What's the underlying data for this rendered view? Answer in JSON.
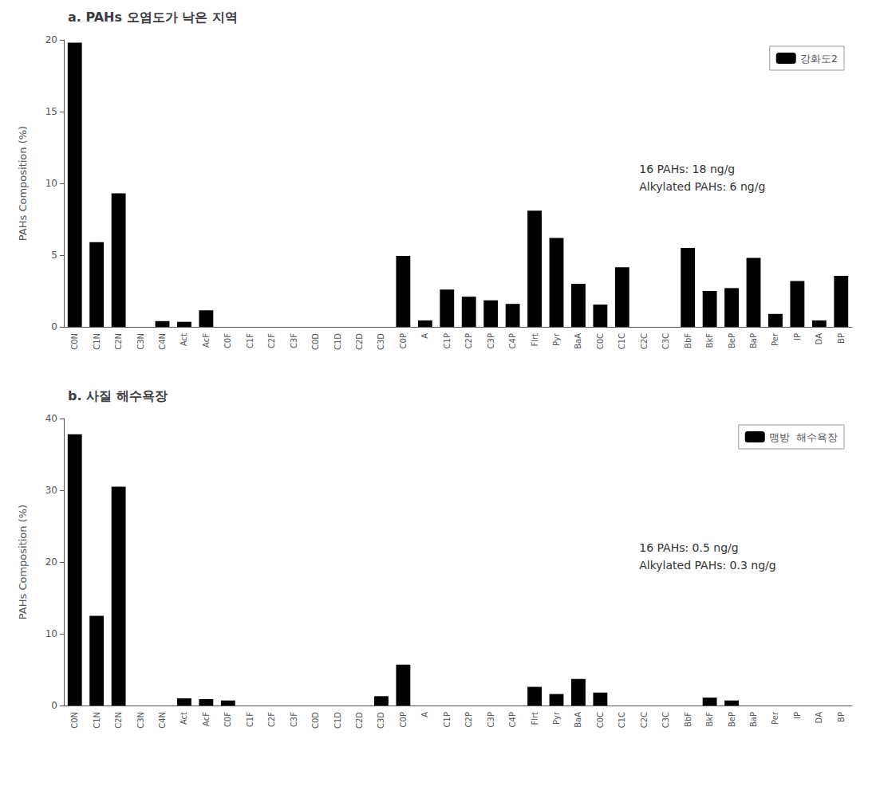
{
  "chart_data": [
    {
      "type": "bar",
      "title": "a. PAHs 오염도가 낙은 지역",
      "ylabel": "PAHs Composition (%)",
      "categories": [
        "C0N",
        "C1N",
        "C2N",
        "C3N",
        "C4N",
        "Act",
        "AcF",
        "C0F",
        "C1F",
        "C2F",
        "C3F",
        "C0D",
        "C1D",
        "C2D",
        "C3D",
        "C0P",
        "A",
        "C1P",
        "C2P",
        "C3P",
        "C4P",
        "Flrt",
        "Pyr",
        "BaA",
        "C0C",
        "C1C",
        "C2C",
        "C3C",
        "BbF",
        "BkF",
        "BeP",
        "BaP",
        "Per",
        "IP",
        "DA",
        "BP"
      ],
      "series": [
        {
          "name": "강화도2",
          "color": "#000000",
          "values": [
            19.8,
            5.9,
            9.3,
            0.0,
            0.4,
            0.35,
            1.15,
            0.0,
            0.0,
            0.0,
            0.0,
            0.0,
            0.0,
            0.0,
            0.0,
            4.95,
            0.45,
            2.6,
            2.1,
            1.85,
            1.6,
            8.1,
            6.2,
            3.0,
            1.55,
            4.15,
            0.0,
            0.0,
            5.5,
            2.5,
            2.7,
            4.8,
            0.9,
            3.2,
            0.45,
            3.55
          ]
        }
      ],
      "annotations": [
        "16 PAHs: 18 ng/g\nAlkylated PAHs: 6 ng/g"
      ],
      "ylim": [
        0,
        20
      ],
      "yticks": [
        0,
        5,
        10,
        15,
        20
      ],
      "grid": false,
      "legend": "upper right"
    },
    {
      "type": "bar",
      "title": "b. 사질 해수욕장",
      "ylabel": "PAHs Composition (%)",
      "categories": [
        "C0N",
        "C1N",
        "C2N",
        "C3N",
        "C4N",
        "Act",
        "AcF",
        "C0F",
        "C1F",
        "C2F",
        "C3F",
        "C0D",
        "C1D",
        "C2D",
        "C3D",
        "C0P",
        "A",
        "C1P",
        "C2P",
        "C3P",
        "C4P",
        "Flrt",
        "Pyr",
        "BaA",
        "C0C",
        "C1C",
        "C2C",
        "C3C",
        "BbF",
        "BkF",
        "BeP",
        "BaP",
        "Per",
        "IP",
        "DA",
        "BP"
      ],
      "series": [
        {
          "name": "맹방  해수욕장",
          "color": "#000000",
          "values": [
            37.8,
            12.5,
            30.5,
            0.0,
            0.0,
            1.0,
            0.9,
            0.7,
            0.0,
            0.0,
            0.0,
            0.0,
            0.0,
            0.0,
            1.3,
            5.7,
            0.0,
            0.0,
            0.0,
            0.0,
            0.0,
            2.6,
            1.6,
            3.7,
            1.8,
            0.0,
            0.0,
            0.0,
            0.0,
            1.1,
            0.7,
            0.0,
            0.0,
            0.0,
            0.0,
            0.0
          ]
        }
      ],
      "annotations": [
        "16 PAHs: 0.5 ng/g\nAlkylated PAHs: 0.3 ng/g"
      ],
      "ylim": [
        0,
        40
      ],
      "yticks": [
        0,
        10,
        20,
        30,
        40
      ],
      "grid": false,
      "legend": "upper right"
    }
  ]
}
